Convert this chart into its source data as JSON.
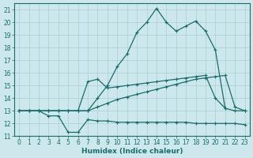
{
  "xlabel": "Humidex (Indice chaleur)",
  "xlim": [
    -0.5,
    23.5
  ],
  "ylim": [
    11,
    21.5
  ],
  "xticks": [
    0,
    1,
    2,
    3,
    4,
    5,
    6,
    7,
    8,
    9,
    10,
    11,
    12,
    13,
    14,
    15,
    16,
    17,
    18,
    19,
    20,
    21,
    22,
    23
  ],
  "yticks": [
    11,
    12,
    13,
    14,
    15,
    16,
    17,
    18,
    19,
    20,
    21
  ],
  "background_color": "#cce8ed",
  "grid_color": "#aacdd4",
  "line_color": "#1a6b6b",
  "line1_x": [
    0,
    1,
    2,
    3,
    4,
    5,
    6,
    7,
    8,
    9,
    10,
    11,
    12,
    13,
    14,
    15,
    16,
    17,
    18,
    19,
    20,
    21
  ],
  "line1_y": [
    13,
    13,
    13,
    13,
    13,
    13,
    13,
    13,
    14,
    15,
    16.5,
    17.5,
    19.2,
    20.0,
    21.1,
    20.0,
    19.3,
    19.7,
    20.1,
    19.3,
    17.8,
    13.2
  ],
  "line2_x": [
    0,
    1,
    2,
    3,
    4,
    5,
    6,
    7,
    8,
    9,
    10,
    11,
    12,
    13,
    14,
    15,
    16,
    17,
    18,
    19,
    20,
    21,
    22,
    23
  ],
  "line2_y": [
    13,
    13,
    13,
    13,
    13,
    13,
    13,
    15.3,
    15.5,
    14.8,
    14.9,
    15.0,
    15.1,
    15.2,
    15.3,
    15.4,
    15.5,
    15.6,
    15.7,
    15.8,
    14.0,
    13.2,
    13.0,
    13.0
  ],
  "line3_x": [
    0,
    1,
    2,
    3,
    4,
    5,
    6,
    7,
    8,
    9,
    10,
    11,
    12,
    13,
    14,
    15,
    16,
    17,
    18,
    19,
    20,
    21,
    22,
    23
  ],
  "line3_y": [
    13,
    13,
    13,
    13,
    13,
    13,
    13,
    13,
    13.3,
    13.6,
    13.9,
    14.1,
    14.3,
    14.5,
    14.7,
    14.9,
    15.1,
    15.3,
    15.5,
    15.6,
    15.7,
    15.8,
    13.3,
    13.0
  ],
  "line4_x": [
    0,
    1,
    2,
    3,
    4,
    5,
    6,
    7,
    8,
    9,
    10,
    11,
    12,
    13,
    14,
    15,
    16,
    17,
    18,
    19,
    20,
    21,
    22,
    23
  ],
  "line4_y": [
    13,
    13,
    13,
    12.6,
    12.6,
    11.3,
    11.3,
    12.3,
    12.2,
    12.2,
    12.1,
    12.1,
    12.1,
    12.1,
    12.1,
    12.1,
    12.1,
    12.1,
    12.0,
    12.0,
    12.0,
    12.0,
    12.0,
    11.9
  ]
}
